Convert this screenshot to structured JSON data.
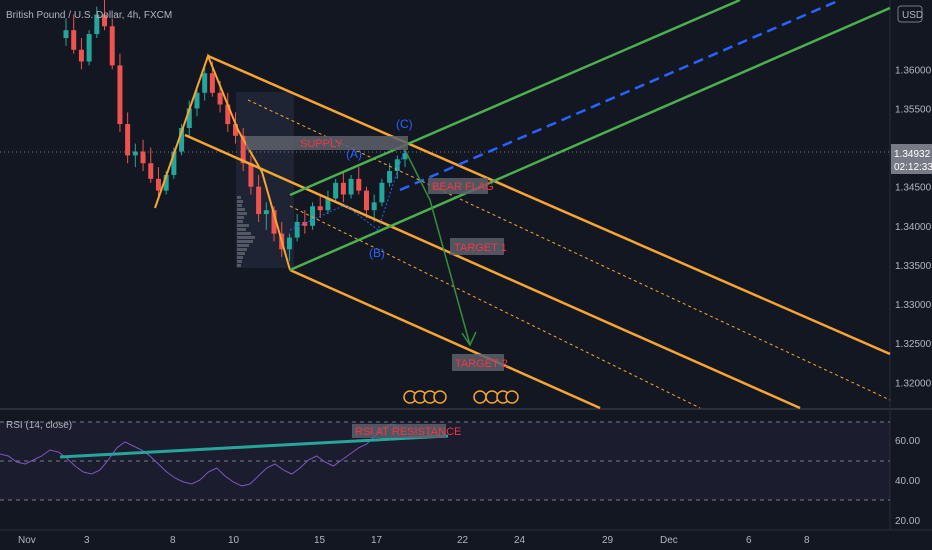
{
  "chart_data": [
    {
      "type": "candlestick",
      "title": "British Pound / U.S. Dollar, 4h, FXCM",
      "currency": "USD",
      "y_ticks": [
        "1.36000",
        "1.35500",
        "1.35000",
        "1.34500",
        "1.34000",
        "1.33500",
        "1.33000",
        "1.32500",
        "1.32000"
      ],
      "ylim": [
        1.318,
        1.369
      ],
      "x_ticks": [
        "Nov",
        "3",
        "8",
        "10",
        "15",
        "17",
        "22",
        "24",
        "29",
        "Dec",
        "6",
        "8"
      ],
      "current_price": "1.34932",
      "countdown": "02:12:33",
      "candles": [
        [
          1.364,
          1.3665,
          1.363,
          1.365
        ],
        [
          1.365,
          1.367,
          1.362,
          1.3625
        ],
        [
          1.3625,
          1.364,
          1.36,
          1.361
        ],
        [
          1.361,
          1.365,
          1.3605,
          1.3645
        ],
        [
          1.3645,
          1.368,
          1.364,
          1.367
        ],
        [
          1.367,
          1.369,
          1.365,
          1.3655
        ],
        [
          1.3655,
          1.3665,
          1.36,
          1.3605
        ],
        [
          1.3605,
          1.362,
          1.352,
          1.353
        ],
        [
          1.353,
          1.3545,
          1.348,
          1.349
        ],
        [
          1.349,
          1.3505,
          1.3475,
          1.3495
        ],
        [
          1.3495,
          1.351,
          1.347,
          1.348
        ],
        [
          1.348,
          1.35,
          1.3455,
          1.346
        ],
        [
          1.346,
          1.3475,
          1.3435,
          1.3445
        ],
        [
          1.3445,
          1.347,
          1.344,
          1.3465
        ],
        [
          1.3465,
          1.35,
          1.346,
          1.3495
        ],
        [
          1.3495,
          1.353,
          1.349,
          1.3525
        ],
        [
          1.3525,
          1.356,
          1.3515,
          1.355
        ],
        [
          1.355,
          1.358,
          1.354,
          1.357
        ],
        [
          1.357,
          1.3605,
          1.356,
          1.3595
        ],
        [
          1.3595,
          1.361,
          1.3565,
          1.357
        ],
        [
          1.357,
          1.3585,
          1.3545,
          1.3555
        ],
        [
          1.3555,
          1.357,
          1.352,
          1.353
        ],
        [
          1.353,
          1.3545,
          1.3505,
          1.3515
        ],
        [
          1.3515,
          1.3525,
          1.347,
          1.348
        ],
        [
          1.348,
          1.349,
          1.344,
          1.345
        ],
        [
          1.345,
          1.3465,
          1.3405,
          1.3415
        ],
        [
          1.3415,
          1.343,
          1.3395,
          1.342
        ],
        [
          1.342,
          1.3425,
          1.338,
          1.339
        ],
        [
          1.339,
          1.3405,
          1.336,
          1.337
        ],
        [
          1.337,
          1.339,
          1.3355,
          1.3385
        ],
        [
          1.3385,
          1.3415,
          1.338,
          1.3405
        ],
        [
          1.3405,
          1.342,
          1.339,
          1.34
        ],
        [
          1.34,
          1.343,
          1.3395,
          1.3425
        ],
        [
          1.3425,
          1.344,
          1.341,
          1.342
        ],
        [
          1.342,
          1.3445,
          1.3415,
          1.3435
        ],
        [
          1.3435,
          1.346,
          1.343,
          1.3455
        ],
        [
          1.3455,
          1.347,
          1.343,
          1.344
        ],
        [
          1.344,
          1.3465,
          1.3435,
          1.346
        ],
        [
          1.346,
          1.3475,
          1.344,
          1.3445
        ],
        [
          1.3445,
          1.345,
          1.341,
          1.342
        ],
        [
          1.342,
          1.344,
          1.3405,
          1.343
        ],
        [
          1.343,
          1.346,
          1.3425,
          1.3455
        ],
        [
          1.3455,
          1.348,
          1.345,
          1.347
        ],
        [
          1.347,
          1.349,
          1.346,
          1.3485
        ],
        [
          1.3485,
          1.35,
          1.3475,
          1.3493
        ]
      ],
      "price_channel_lines": [
        {
          "role": "median",
          "from": [
            1.3607
          ],
          "to": [
            1.319
          ],
          "style": "solid"
        },
        {
          "role": "upper",
          "style": "solid"
        },
        {
          "role": "lower",
          "style": "solid"
        }
      ],
      "annotations": {
        "supply": "SUPPLY",
        "bear_flag": "BEAR FLAG",
        "target1": "TARGET 1",
        "target2": "TARGET 2",
        "wave_a": "(A)",
        "wave_b": "(B)",
        "wave_c": "(C)"
      },
      "colors": {
        "background": "#131722",
        "up_candle": "#26a69a",
        "down_candle": "#ef5350",
        "orange": "#f7a531",
        "green": "#4caf50",
        "blue_dashed": "#2962ff",
        "label_bg": "#5d606b",
        "label_text": "#f23645",
        "price_tag": "#787b86"
      }
    },
    {
      "type": "line",
      "title": "RSI (14, close)",
      "y_ticks": [
        "60.00",
        "40.00",
        "20.00"
      ],
      "ylim": [
        15,
        75
      ],
      "levels": [
        70,
        50,
        30
      ],
      "values": [
        53,
        52,
        49,
        48,
        50,
        52,
        55,
        54,
        51,
        47,
        44,
        43,
        45,
        50,
        56,
        59,
        57,
        55,
        52,
        48,
        44,
        41,
        39,
        38,
        40,
        44,
        46,
        42,
        39,
        37,
        38,
        42,
        46,
        48,
        45,
        43,
        46,
        50,
        52,
        49,
        47,
        50,
        53,
        56,
        58,
        62,
        66,
        68,
        66
      ],
      "annotation": "RSI AT RESISTANCE",
      "colors": {
        "line": "#7e57c2",
        "band": "#7e57c2",
        "trendline": "#26a69a"
      }
    }
  ]
}
